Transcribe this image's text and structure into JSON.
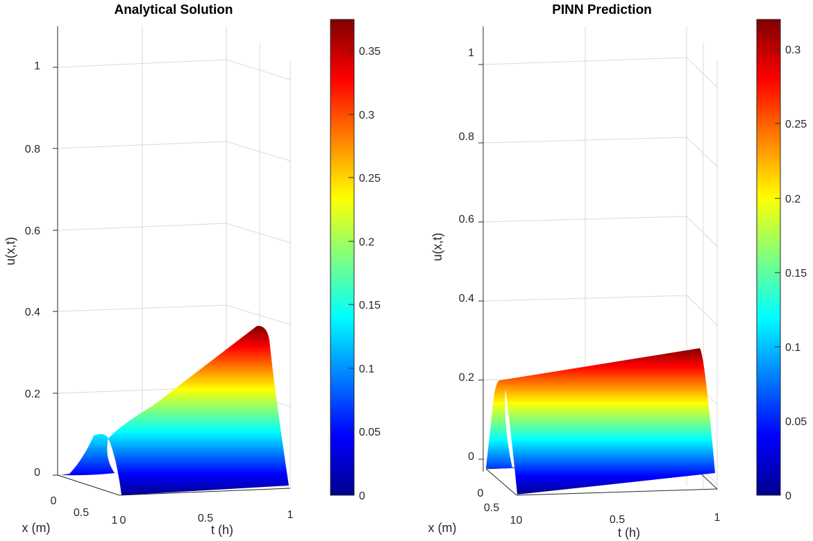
{
  "chart_data": [
    {
      "type": "surface",
      "title": "Analytical Solution",
      "xlabel": "x (m)",
      "ylabel": "t (h)",
      "zlabel": "u(x,t)",
      "xlim": [
        0,
        1
      ],
      "ylim": [
        0,
        1
      ],
      "zlim": [
        0,
        1.1
      ],
      "x_ticks": [
        "0",
        "0.5",
        "1"
      ],
      "t_ticks": [
        "0",
        "0.5",
        "1"
      ],
      "z_ticks": [
        "0",
        "0.2",
        "0.4",
        "0.6",
        "0.8",
        "1"
      ],
      "colorbar_ticks": [
        "0",
        "0.05",
        "0.1",
        "0.15",
        "0.2",
        "0.25",
        "0.3",
        "0.35"
      ],
      "colorbar_range": [
        0,
        0.375
      ],
      "colormap": "jet",
      "grid": true,
      "peak_at_t0": 0.095,
      "peak_at_t1": 0.375
    },
    {
      "type": "surface",
      "title": "PINN Prediction",
      "xlabel": "x (m)",
      "ylabel": "t (h)",
      "zlabel": "u(x,t)",
      "xlim": [
        0,
        1
      ],
      "ylim": [
        0,
        1
      ],
      "zlim": [
        -0.05,
        1.1
      ],
      "x_ticks": [
        "0",
        "0.5",
        "1"
      ],
      "t_ticks": [
        "0",
        "0.5",
        "1"
      ],
      "z_ticks": [
        "0",
        "0.2",
        "0.4",
        "0.6",
        "0.8",
        "1"
      ],
      "colorbar_ticks": [
        "0",
        "0.05",
        "0.1",
        "0.15",
        "0.2",
        "0.25",
        "0.3"
      ],
      "colorbar_range": [
        0,
        0.32
      ],
      "colormap": "jet",
      "grid": true,
      "peak_at_t0": 0.2,
      "peak_at_t1": 0.32
    }
  ]
}
